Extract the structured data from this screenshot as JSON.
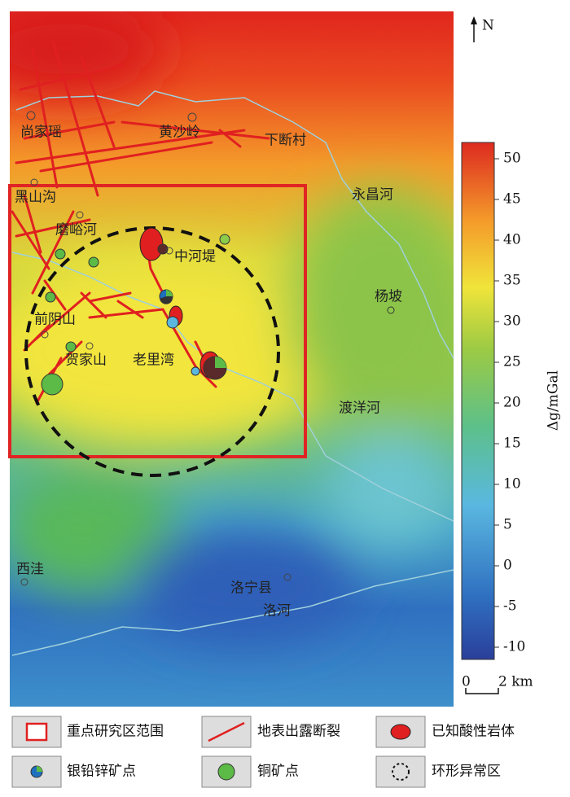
{
  "map": {
    "north": "N",
    "places": [
      "尚家瑶",
      "黄沙岭",
      "下断村",
      "黑山沟",
      "永昌河",
      "磨峪河",
      "中河堤",
      "杨坡",
      "前阴山",
      "贺家山",
      "老里湾",
      "渡洋河",
      "西洼",
      "洛宁县",
      "洛河"
    ],
    "colorbar": {
      "label": "Δg/mGal",
      "range": [
        -11.5,
        52
      ],
      "ticks": [
        -10,
        -5,
        0,
        5,
        10,
        15,
        20,
        25,
        30,
        35,
        40,
        45,
        50
      ]
    },
    "scale_bar": {
      "start": "0",
      "label": "2 km"
    }
  },
  "legend": {
    "items": [
      "重点研究区范围",
      "地表出露断裂",
      "已知酸性岩体",
      "银铅锌矿点",
      "铜矿点",
      "环形异常区"
    ]
  }
}
